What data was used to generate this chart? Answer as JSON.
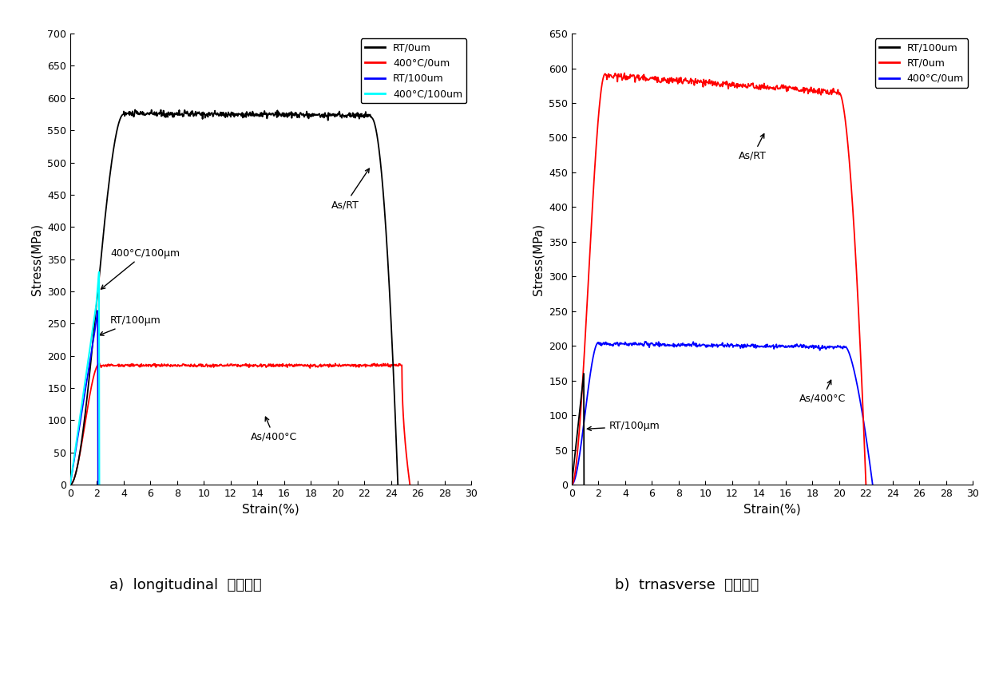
{
  "left_chart": {
    "xlabel": "Strain(%)",
    "ylabel": "Stress(MPa)",
    "xlim": [
      0,
      30
    ],
    "ylim": [
      0,
      700
    ],
    "xticks": [
      0,
      2,
      4,
      6,
      8,
      10,
      12,
      14,
      16,
      18,
      20,
      22,
      24,
      26,
      28,
      30
    ],
    "yticks": [
      0,
      50,
      100,
      150,
      200,
      250,
      300,
      350,
      400,
      450,
      500,
      550,
      600,
      650,
      700
    ],
    "legend_labels": [
      "RT/0um",
      "400°C/0um",
      "RT/100um",
      "400°C/100um"
    ],
    "legend_colors": [
      "black",
      "red",
      "blue",
      "cyan"
    ]
  },
  "right_chart": {
    "xlabel": "Strain(%)",
    "ylabel": "Stress(MPa)",
    "xlim": [
      0,
      30
    ],
    "ylim": [
      0,
      650
    ],
    "xticks": [
      0,
      2,
      4,
      6,
      8,
      10,
      12,
      14,
      16,
      18,
      20,
      22,
      24,
      26,
      28,
      30
    ],
    "yticks": [
      0,
      50,
      100,
      150,
      200,
      250,
      300,
      350,
      400,
      450,
      500,
      550,
      600,
      650
    ],
    "legend_labels": [
      "RT/100um",
      "RT/0um",
      "400°C/0um"
    ],
    "legend_colors": [
      "black",
      "red",
      "blue"
    ]
  },
  "caption_left": "a)  longitudinal  판재시편",
  "caption_right": "b)  trnasverse  판재시편"
}
